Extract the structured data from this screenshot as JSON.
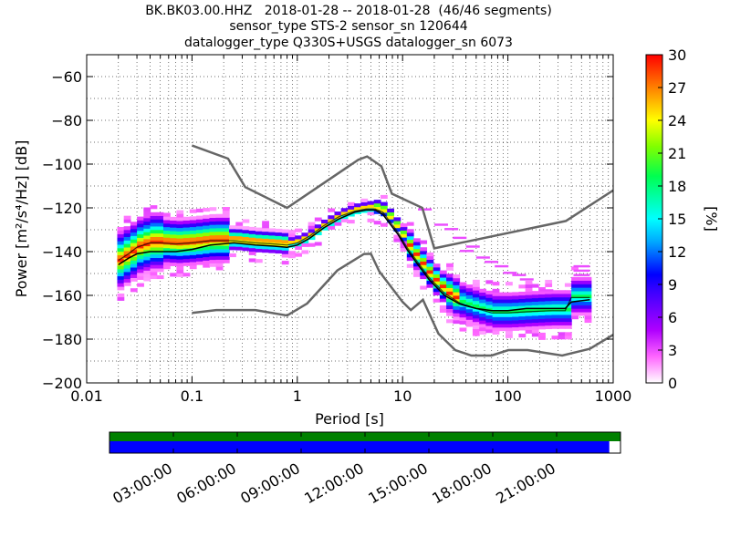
{
  "title_lines": [
    "BK.BK03.00.HHZ   2018-01-28 -- 2018-01-28  (46/46 segments)",
    "sensor_type STS-2 sensor_sn 120644",
    "datalogger_type Q330S+USGS datalogger_sn 6073"
  ],
  "chart_data": {
    "type": "heatmap",
    "subtype": "probabilistic power spectral density (PPSD)",
    "xlabel": "Period [s]",
    "ylabel": "Power [m²/s⁴/Hz] [dB]",
    "xscale": "log",
    "xlim": [
      0.01,
      1000
    ],
    "ylim": [
      -200,
      -50
    ],
    "grid": "dotted",
    "x_ticks": [
      0.01,
      0.1,
      1,
      10,
      100,
      1000
    ],
    "x_tick_labels": [
      "0.01",
      "0.1",
      "1",
      "10",
      "100",
      "1000"
    ],
    "y_ticks": [
      -60,
      -80,
      -100,
      -120,
      -140,
      -160,
      -180,
      -200
    ],
    "y_tick_labels": [
      "−60",
      "−80",
      "−100",
      "−120",
      "−140",
      "−160",
      "−180",
      "−200"
    ],
    "colorbar": {
      "label": "[%]",
      "range": [
        0,
        30
      ],
      "ticks": [
        0,
        3,
        6,
        9,
        12,
        15,
        18,
        21,
        24,
        27,
        30
      ],
      "tick_labels": [
        "0",
        "3",
        "6",
        "9",
        "12",
        "15",
        "18",
        "21",
        "24",
        "27",
        "30"
      ]
    },
    "noise_models": {
      "color": "#666666",
      "high": [
        [
          0.1,
          -91.5
        ],
        [
          0.22,
          -97.5
        ],
        [
          0.32,
          -110.5
        ],
        [
          0.8,
          -120
        ],
        [
          3.8,
          -98
        ],
        [
          4.6,
          -96.5
        ],
        [
          6.3,
          -101
        ],
        [
          7.9,
          -113.5
        ],
        [
          15.4,
          -120
        ],
        [
          20,
          -138.5
        ],
        [
          354.8,
          -126
        ],
        [
          1000,
          -112
        ]
      ],
      "low": [
        [
          0.1,
          -168
        ],
        [
          0.17,
          -166.7
        ],
        [
          0.4,
          -166.7
        ],
        [
          0.8,
          -169.2
        ],
        [
          1.24,
          -163.7
        ],
        [
          2.4,
          -148.6
        ],
        [
          4.3,
          -141.1
        ],
        [
          5,
          -141
        ],
        [
          6,
          -149
        ],
        [
          10,
          -163
        ],
        [
          12,
          -166.7
        ],
        [
          15.6,
          -162
        ],
        [
          21.9,
          -177.5
        ],
        [
          31.6,
          -185
        ],
        [
          45,
          -187.5
        ],
        [
          70,
          -187.5
        ],
        [
          101,
          -185
        ],
        [
          154,
          -185
        ],
        [
          328,
          -187.5
        ],
        [
          600,
          -184.4
        ],
        [
          1000,
          -178
        ]
      ]
    },
    "mean_curve": [
      [
        0.02,
        -146
      ],
      [
        0.025,
        -143
      ],
      [
        0.03,
        -141
      ],
      [
        0.04,
        -140
      ],
      [
        0.05,
        -140
      ],
      [
        0.07,
        -140
      ],
      [
        0.1,
        -139
      ],
      [
        0.15,
        -137
      ],
      [
        0.25,
        -136
      ],
      [
        0.4,
        -137
      ],
      [
        0.6,
        -137.5
      ],
      [
        0.8,
        -138
      ],
      [
        1,
        -137
      ],
      [
        1.3,
        -134
      ],
      [
        1.8,
        -129
      ],
      [
        2.5,
        -125
      ],
      [
        3.5,
        -122
      ],
      [
        4.5,
        -121
      ],
      [
        5.5,
        -121
      ],
      [
        6.5,
        -123
      ],
      [
        7.5,
        -127
      ],
      [
        9,
        -132
      ],
      [
        11,
        -139
      ],
      [
        14,
        -146
      ],
      [
        18,
        -153
      ],
      [
        25,
        -160
      ],
      [
        35,
        -164
      ],
      [
        50,
        -166
      ],
      [
        70,
        -167
      ],
      [
        100,
        -167
      ],
      [
        150,
        -166
      ],
      [
        250,
        -166
      ],
      [
        350,
        -166
      ],
      [
        400,
        -163
      ],
      [
        600,
        -162
      ]
    ],
    "median_curve": [
      [
        0.02,
        -144
      ],
      [
        0.025,
        -141
      ],
      [
        0.03,
        -138
      ],
      [
        0.04,
        -136
      ],
      [
        0.05,
        -136
      ],
      [
        0.07,
        -136.5
      ],
      [
        0.1,
        -136
      ],
      [
        0.15,
        -135
      ],
      [
        0.25,
        -135
      ],
      [
        0.4,
        -136
      ],
      [
        0.6,
        -136.5
      ],
      [
        0.8,
        -137
      ],
      [
        1,
        -136
      ],
      [
        1.3,
        -133
      ],
      [
        1.8,
        -128
      ],
      [
        2.5,
        -124
      ],
      [
        3.5,
        -121.5
      ],
      [
        4.5,
        -120.5
      ],
      [
        5.5,
        -120.5
      ],
      [
        6.5,
        -122
      ],
      [
        7.5,
        -126
      ],
      [
        9,
        -131
      ],
      [
        11,
        -138
      ],
      [
        14,
        -145
      ],
      [
        18,
        -152
      ],
      [
        25,
        -159
      ],
      [
        35,
        -163.5
      ],
      [
        50,
        -166
      ],
      [
        70,
        -168
      ],
      [
        100,
        -168
      ],
      [
        150,
        -167.5
      ],
      [
        250,
        -167
      ],
      [
        350,
        -167
      ],
      [
        400,
        -161
      ],
      [
        600,
        -161
      ]
    ]
  },
  "timeline": {
    "tick_labels": [
      "03:00:00",
      "06:00:00",
      "09:00:00",
      "12:00:00",
      "15:00:00",
      "18:00:00",
      "21:00:00"
    ],
    "top_bar_color": "#008000",
    "bottom_bar_color": "#0000ff",
    "coverage_fraction": 0.978
  }
}
